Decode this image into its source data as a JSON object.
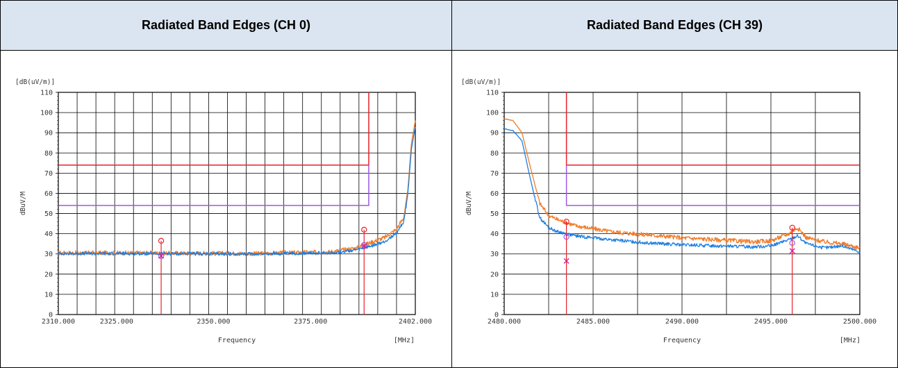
{
  "table": {
    "left_header": "Radiated Band Edges (CH 0)",
    "right_header": "Radiated Band Edges (CH 39)"
  },
  "colors": {
    "trace_peak": "#f07c2a",
    "trace_avg": "#1f7fe0",
    "limit_peak": "#e8202a",
    "limit_avg": "#9b59e8",
    "marker": "#cc2299",
    "grid": "#000000"
  },
  "chart_data": [
    {
      "type": "line",
      "unit_label": "[dB(uV/m)]",
      "ylabel": "dBuV/M",
      "xlabel": "Frequency",
      "x_unit": "[MHz]",
      "ylim": [
        0,
        110
      ],
      "xlim": [
        2310,
        2402
      ],
      "yticks": [
        0,
        10,
        20,
        30,
        40,
        50,
        60,
        70,
        80,
        90,
        100,
        110
      ],
      "xtick_labels": [
        {
          "value": 2310,
          "label": "2310.000"
        },
        {
          "value": 2325,
          "label": "2325.000"
        },
        {
          "value": 2350,
          "label": "2350.000"
        },
        {
          "value": 2375,
          "label": "2375.000"
        },
        {
          "value": 2402,
          "label": "2402.000"
        }
      ],
      "grid": true,
      "limits": [
        {
          "name": "peak",
          "value": 74,
          "x_range": [
            2310,
            2390
          ]
        },
        {
          "name": "average",
          "value": 54,
          "x_range": [
            2310,
            2390
          ]
        }
      ],
      "series": [
        {
          "role": "peak",
          "x": [
            2310,
            2330,
            2360,
            2380,
            2387,
            2391,
            2394,
            2397,
            2399,
            2400,
            2401,
            2402
          ],
          "y": [
            30.5,
            30.5,
            30.2,
            31,
            33,
            36,
            38,
            42,
            48,
            60,
            85,
            96
          ]
        },
        {
          "role": "average",
          "x": [
            2310,
            2330,
            2360,
            2380,
            2387,
            2391,
            2394,
            2397,
            2399,
            2400,
            2401,
            2402
          ],
          "y": [
            30.2,
            30.2,
            30.0,
            30.5,
            32,
            34,
            36,
            40,
            46,
            58,
            82,
            93
          ]
        }
      ],
      "markers": [
        {
          "x": 2336.5,
          "peak": 36.5,
          "avg": 29
        },
        {
          "x": 2388.8,
          "peak": 42,
          "avg": 34
        }
      ]
    },
    {
      "type": "line",
      "unit_label": "[dB(uV/m)]",
      "ylabel": "dBuV/M",
      "xlabel": "Frequency",
      "x_unit": "[MHz]",
      "ylim": [
        0,
        110
      ],
      "xlim": [
        2480,
        2500
      ],
      "yticks": [
        0,
        10,
        20,
        30,
        40,
        50,
        60,
        70,
        80,
        90,
        100,
        110
      ],
      "xtick_labels": [
        {
          "value": 2480,
          "label": "2480.000"
        },
        {
          "value": 2485,
          "label": "2485.000"
        },
        {
          "value": 2490,
          "label": "2490.000"
        },
        {
          "value": 2495,
          "label": "2495.000"
        },
        {
          "value": 2500,
          "label": "2500.000"
        }
      ],
      "grid": true,
      "limits": [
        {
          "name": "peak",
          "value": 74,
          "x_range": [
            2483.5,
            2500
          ]
        },
        {
          "name": "average",
          "value": 54,
          "x_range": [
            2483.5,
            2500
          ]
        }
      ],
      "series": [
        {
          "role": "peak",
          "x": [
            2480,
            2480.5,
            2481,
            2481.5,
            2482,
            2482.5,
            2483,
            2484,
            2486,
            2488,
            2490,
            2492,
            2494,
            2495,
            2496,
            2496.5,
            2497,
            2498,
            2499,
            2500
          ],
          "y": [
            97,
            96,
            90,
            72,
            55,
            49,
            47,
            44,
            41,
            39.5,
            38,
            37,
            36,
            36.5,
            40,
            43,
            38,
            36,
            35,
            33
          ]
        },
        {
          "role": "average",
          "x": [
            2480,
            2480.5,
            2481,
            2481.5,
            2482,
            2482.5,
            2483,
            2484,
            2486,
            2488,
            2490,
            2492,
            2494,
            2495,
            2496,
            2496.5,
            2497,
            2498,
            2499,
            2500
          ],
          "y": [
            92,
            91,
            86,
            66,
            48,
            43,
            41,
            39,
            37,
            35.5,
            34.5,
            34,
            33.5,
            34,
            37,
            39,
            35,
            33,
            34,
            31
          ]
        }
      ],
      "markers": [
        {
          "x": 2483.5,
          "peak": 46,
          "avg": 26.5
        },
        {
          "x": 2496.2,
          "peak": 43,
          "avg": 31.5
        }
      ]
    }
  ]
}
